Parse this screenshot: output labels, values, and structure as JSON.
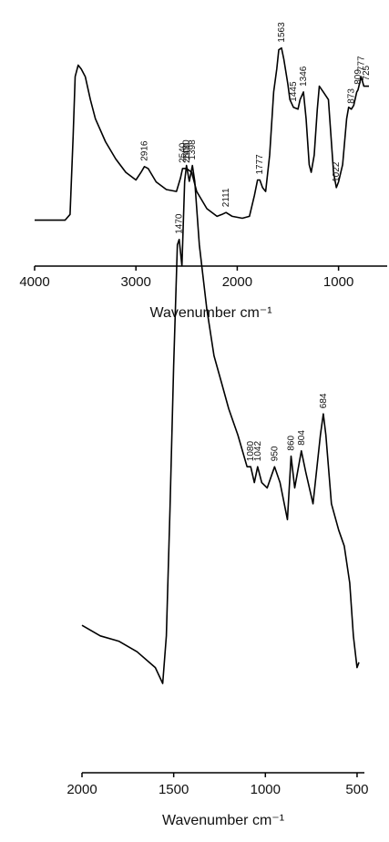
{
  "chart_data": [
    {
      "type": "line",
      "xlabel": "Wavenumber cm⁻¹",
      "xlim": [
        4000,
        520
      ],
      "xticks": [
        4000,
        3000,
        2000,
        1000
      ],
      "ylim": [
        0,
        100
      ],
      "series": [
        {
          "color": "#000000",
          "x": [
            4000,
            3700,
            3650,
            3620,
            3600,
            3570,
            3540,
            3500,
            3450,
            3400,
            3300,
            3200,
            3100,
            3000,
            2950,
            2916,
            2880,
            2800,
            2700,
            2600,
            2560,
            2540,
            2500,
            2450,
            2400,
            2300,
            2200,
            2150,
            2111,
            2050,
            1950,
            1880,
            1830,
            1800,
            1777,
            1750,
            1720,
            1680,
            1640,
            1610,
            1590,
            1563,
            1540,
            1500,
            1480,
            1445,
            1400,
            1380,
            1346,
            1320,
            1290,
            1270,
            1240,
            1210,
            1190,
            1150,
            1100,
            1050,
            1022,
            1000,
            960,
            920,
            900,
            873,
            850,
            820,
            809,
            790,
            777,
            750,
            725,
            700
          ],
          "values": [
            4,
            4,
            7,
            48,
            79,
            85,
            83,
            79,
            67,
            57,
            45,
            36,
            29,
            25,
            29,
            32,
            31,
            24,
            20,
            19,
            26,
            31,
            31,
            29,
            19,
            10,
            6,
            7,
            8,
            6,
            5,
            6,
            17,
            25,
            25,
            21,
            19,
            38,
            71,
            83,
            93,
            94,
            88,
            75,
            67,
            63,
            62,
            67,
            71,
            57,
            33,
            29,
            38,
            62,
            74,
            71,
            67,
            29,
            21,
            24,
            33,
            57,
            63,
            62,
            64,
            71,
            72,
            76,
            79,
            74,
            74,
            74
          ]
        }
      ],
      "peaks": [
        2916,
        2540,
        2500,
        2111,
        1777,
        1563,
        1445,
        1346,
        1022,
        873,
        809,
        777,
        725
      ]
    },
    {
      "type": "line",
      "xlabel": "Wavenumber cm⁻¹",
      "xlim": [
        2000,
        460
      ],
      "xticks": [
        2000,
        1500,
        1000,
        500
      ],
      "ylim": [
        0,
        100
      ],
      "series": [
        {
          "color": "#000000",
          "x": [
            2000,
            1900,
            1800,
            1700,
            1600,
            1560,
            1540,
            1520,
            1500,
            1480,
            1470,
            1455,
            1440,
            1430,
            1415,
            1398,
            1385,
            1360,
            1320,
            1280,
            1240,
            1200,
            1150,
            1100,
            1080,
            1060,
            1042,
            1020,
            990,
            950,
            920,
            880,
            860,
            840,
            804,
            780,
            740,
            700,
            684,
            670,
            640,
            600,
            570,
            540,
            520,
            500,
            490
          ],
          "values": [
            11,
            9,
            8,
            6,
            3,
            0,
            9,
            33,
            60,
            83,
            84,
            79,
            95,
            98,
            95,
            98,
            95,
            83,
            71,
            62,
            57,
            52,
            47,
            41,
            41,
            38,
            41,
            38,
            37,
            41,
            38,
            31,
            43,
            37,
            44,
            40,
            34,
            47,
            51,
            47,
            34,
            29,
            26,
            19,
            9,
            3,
            4
          ]
        }
      ],
      "peaks": [
        1470,
        1430,
        1398,
        1080,
        1042,
        950,
        860,
        804,
        684
      ]
    }
  ]
}
